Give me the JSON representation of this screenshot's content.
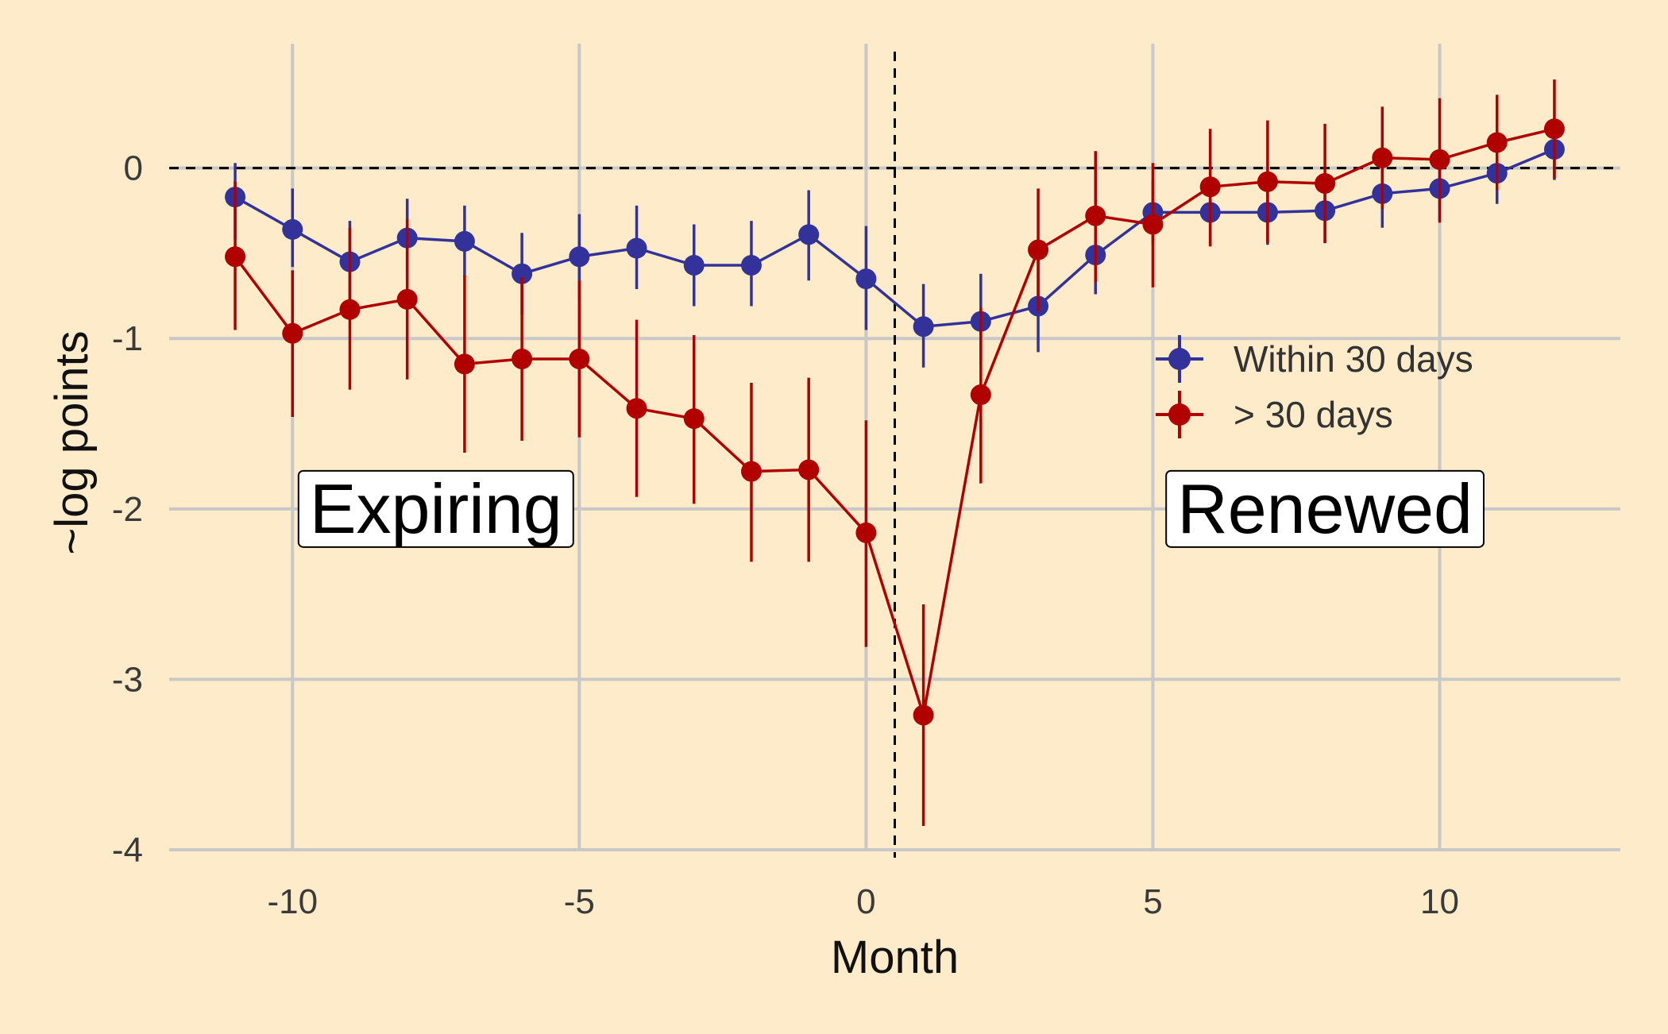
{
  "chart_data": {
    "type": "line",
    "xlabel": "Month",
    "ylabel": "~log points",
    "xlim": [
      -12.15,
      13.15
    ],
    "ylim": [
      -4.0,
      0.73
    ],
    "x_ticks": [
      -10,
      -5,
      0,
      5,
      10
    ],
    "y_ticks": [
      0,
      -1,
      -2,
      -3,
      -4
    ],
    "grid": true,
    "reference_lines": {
      "horizontal_y": 0,
      "vertical_x": 0.5,
      "style": "dashed"
    },
    "legend": {
      "placement": "right, middle"
    },
    "annotations": [
      {
        "text": "Expiring",
        "x": -7.5,
        "y": -2.0
      },
      {
        "text": "Renewed",
        "x": 8.0,
        "y": -2.0
      }
    ],
    "series": [
      {
        "name": "Within 30 days",
        "color": "#33329a",
        "points": [
          {
            "x": -11,
            "y": -0.17,
            "lo": -0.42,
            "hi": 0.03
          },
          {
            "x": -10,
            "y": -0.36,
            "lo": -0.58,
            "hi": -0.12
          },
          {
            "x": -9,
            "y": -0.55,
            "lo": -0.77,
            "hi": -0.31
          },
          {
            "x": -8,
            "y": -0.41,
            "lo": -0.65,
            "hi": -0.18
          },
          {
            "x": -7,
            "y": -0.43,
            "lo": -0.64,
            "hi": -0.22
          },
          {
            "x": -6,
            "y": -0.62,
            "lo": -0.86,
            "hi": -0.38
          },
          {
            "x": -5,
            "y": -0.52,
            "lo": -0.77,
            "hi": -0.27
          },
          {
            "x": -4,
            "y": -0.47,
            "lo": -0.71,
            "hi": -0.22
          },
          {
            "x": -3,
            "y": -0.57,
            "lo": -0.81,
            "hi": -0.33
          },
          {
            "x": -2,
            "y": -0.57,
            "lo": -0.81,
            "hi": -0.31
          },
          {
            "x": -1,
            "y": -0.39,
            "lo": -0.66,
            "hi": -0.13
          },
          {
            "x": 0,
            "y": -0.65,
            "lo": -0.95,
            "hi": -0.34
          },
          {
            "x": 1,
            "y": -0.93,
            "lo": -1.17,
            "hi": -0.68
          },
          {
            "x": 2,
            "y": -0.9,
            "lo": -1.15,
            "hi": -0.62
          },
          {
            "x": 3,
            "y": -0.81,
            "lo": -1.08,
            "hi": -0.54
          },
          {
            "x": 4,
            "y": -0.51,
            "lo": -0.74,
            "hi": -0.26
          },
          {
            "x": 5,
            "y": -0.26,
            "lo": -0.45,
            "hi": -0.07
          },
          {
            "x": 6,
            "y": -0.26,
            "lo": -0.45,
            "hi": -0.06
          },
          {
            "x": 7,
            "y": -0.26,
            "lo": -0.45,
            "hi": -0.06
          },
          {
            "x": 8,
            "y": -0.25,
            "lo": -0.44,
            "hi": -0.05
          },
          {
            "x": 9,
            "y": -0.15,
            "lo": -0.35,
            "hi": 0.05
          },
          {
            "x": 10,
            "y": -0.12,
            "lo": -0.31,
            "hi": 0.08
          },
          {
            "x": 11,
            "y": -0.03,
            "lo": -0.21,
            "hi": 0.16
          },
          {
            "x": 12,
            "y": 0.11,
            "lo": -0.07,
            "hi": 0.28
          }
        ]
      },
      {
        "name": "> 30 days",
        "color": "#b00000",
        "points": [
          {
            "x": -11,
            "y": -0.52,
            "lo": -0.95,
            "hi": -0.08
          },
          {
            "x": -10,
            "y": -0.97,
            "lo": -1.46,
            "hi": -0.6
          },
          {
            "x": -9,
            "y": -0.83,
            "lo": -1.3,
            "hi": -0.35
          },
          {
            "x": -8,
            "y": -0.77,
            "lo": -1.24,
            "hi": -0.3
          },
          {
            "x": -7,
            "y": -1.15,
            "lo": -1.67,
            "hi": -0.63
          },
          {
            "x": -6,
            "y": -1.12,
            "lo": -1.6,
            "hi": -0.64
          },
          {
            "x": -5,
            "y": -1.12,
            "lo": -1.58,
            "hi": -0.66
          },
          {
            "x": -4,
            "y": -1.41,
            "lo": -1.93,
            "hi": -0.89
          },
          {
            "x": -3,
            "y": -1.47,
            "lo": -1.97,
            "hi": -0.98
          },
          {
            "x": -2,
            "y": -1.78,
            "lo": -2.31,
            "hi": -1.26
          },
          {
            "x": -1,
            "y": -1.77,
            "lo": -2.31,
            "hi": -1.23
          },
          {
            "x": 0,
            "y": -2.14,
            "lo": -2.81,
            "hi": -1.48
          },
          {
            "x": 1,
            "y": -3.21,
            "lo": -3.86,
            "hi": -2.56
          },
          {
            "x": 2,
            "y": -1.33,
            "lo": -1.85,
            "hi": -0.82
          },
          {
            "x": 3,
            "y": -0.48,
            "lo": -0.84,
            "hi": -0.12
          },
          {
            "x": 4,
            "y": -0.28,
            "lo": -0.67,
            "hi": 0.1
          },
          {
            "x": 5,
            "y": -0.33,
            "lo": -0.7,
            "hi": 0.03
          },
          {
            "x": 6,
            "y": -0.11,
            "lo": -0.46,
            "hi": 0.23
          },
          {
            "x": 7,
            "y": -0.08,
            "lo": -0.44,
            "hi": 0.28
          },
          {
            "x": 8,
            "y": -0.09,
            "lo": -0.44,
            "hi": 0.26
          },
          {
            "x": 9,
            "y": 0.06,
            "lo": -0.24,
            "hi": 0.36
          },
          {
            "x": 10,
            "y": 0.05,
            "lo": -0.32,
            "hi": 0.41
          },
          {
            "x": 11,
            "y": 0.15,
            "lo": -0.13,
            "hi": 0.43
          },
          {
            "x": 12,
            "y": 0.23,
            "lo": -0.06,
            "hi": 0.52
          }
        ]
      }
    ]
  }
}
